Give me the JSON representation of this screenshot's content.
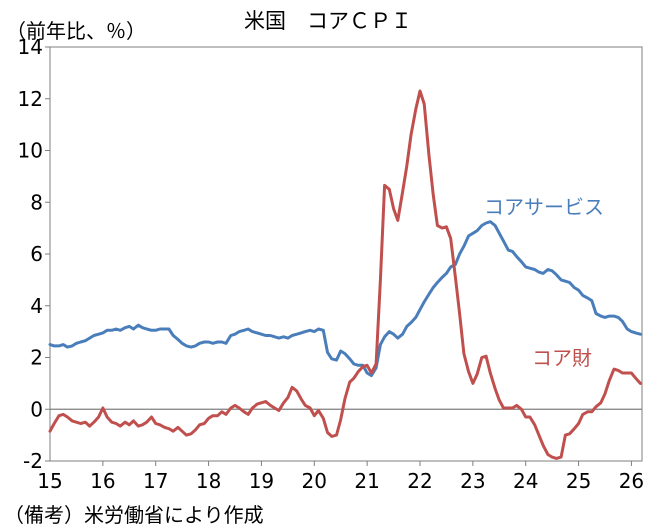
{
  "chart_data": {
    "type": "line",
    "title": "米国　コアＣＰＩ",
    "unit_label": "（前年比、％）",
    "note": "（備考）米労働省により作成",
    "ylim": [
      -2,
      14
    ],
    "y_ticks": [
      "-2",
      "0",
      "2",
      "4",
      "6",
      "8",
      "10",
      "12",
      "14"
    ],
    "x_ticks": [
      "15",
      "16",
      "17",
      "18",
      "19",
      "20",
      "21",
      "22",
      "23",
      "24",
      "25",
      "26"
    ],
    "x_range": [
      2015.0,
      2026.2
    ],
    "zero_line": true,
    "grid": false,
    "colors": {
      "services": "#4a7ebb",
      "goods": "#c0504d",
      "axis": "#7f7f7f"
    },
    "series": [
      {
        "name": "コアサービス",
        "color": "#4a7ebb",
        "points": [
          [
            2015.0,
            2.5
          ],
          [
            2015.08,
            2.45
          ],
          [
            2015.17,
            2.45
          ],
          [
            2015.25,
            2.5
          ],
          [
            2015.33,
            2.4
          ],
          [
            2015.42,
            2.45
          ],
          [
            2015.5,
            2.55
          ],
          [
            2015.58,
            2.6
          ],
          [
            2015.67,
            2.65
          ],
          [
            2015.75,
            2.75
          ],
          [
            2015.83,
            2.85
          ],
          [
            2015.92,
            2.9
          ],
          [
            2016.0,
            2.95
          ],
          [
            2016.08,
            3.05
          ],
          [
            2016.17,
            3.05
          ],
          [
            2016.25,
            3.1
          ],
          [
            2016.33,
            3.05
          ],
          [
            2016.42,
            3.15
          ],
          [
            2016.5,
            3.2
          ],
          [
            2016.58,
            3.1
          ],
          [
            2016.67,
            3.25
          ],
          [
            2016.75,
            3.15
          ],
          [
            2016.83,
            3.1
          ],
          [
            2016.92,
            3.05
          ],
          [
            2017.0,
            3.05
          ],
          [
            2017.08,
            3.1
          ],
          [
            2017.17,
            3.1
          ],
          [
            2017.25,
            3.1
          ],
          [
            2017.33,
            2.85
          ],
          [
            2017.42,
            2.7
          ],
          [
            2017.5,
            2.55
          ],
          [
            2017.58,
            2.45
          ],
          [
            2017.67,
            2.4
          ],
          [
            2017.75,
            2.45
          ],
          [
            2017.83,
            2.55
          ],
          [
            2017.92,
            2.6
          ],
          [
            2018.0,
            2.6
          ],
          [
            2018.08,
            2.55
          ],
          [
            2018.17,
            2.6
          ],
          [
            2018.25,
            2.6
          ],
          [
            2018.33,
            2.55
          ],
          [
            2018.42,
            2.85
          ],
          [
            2018.5,
            2.9
          ],
          [
            2018.58,
            3.0
          ],
          [
            2018.67,
            3.05
          ],
          [
            2018.75,
            3.1
          ],
          [
            2018.83,
            3.0
          ],
          [
            2018.92,
            2.95
          ],
          [
            2019.0,
            2.9
          ],
          [
            2019.08,
            2.85
          ],
          [
            2019.17,
            2.85
          ],
          [
            2019.25,
            2.8
          ],
          [
            2019.33,
            2.75
          ],
          [
            2019.42,
            2.8
          ],
          [
            2019.5,
            2.75
          ],
          [
            2019.58,
            2.85
          ],
          [
            2019.67,
            2.9
          ],
          [
            2019.75,
            2.95
          ],
          [
            2019.83,
            3.0
          ],
          [
            2019.92,
            3.05
          ],
          [
            2020.0,
            3.0
          ],
          [
            2020.08,
            3.1
          ],
          [
            2020.17,
            3.05
          ],
          [
            2020.25,
            2.2
          ],
          [
            2020.33,
            1.95
          ],
          [
            2020.42,
            1.9
          ],
          [
            2020.5,
            2.25
          ],
          [
            2020.58,
            2.15
          ],
          [
            2020.67,
            1.95
          ],
          [
            2020.75,
            1.75
          ],
          [
            2020.83,
            1.7
          ],
          [
            2020.92,
            1.7
          ],
          [
            2021.0,
            1.4
          ],
          [
            2021.08,
            1.3
          ],
          [
            2021.17,
            1.6
          ],
          [
            2021.25,
            2.5
          ],
          [
            2021.33,
            2.8
          ],
          [
            2021.42,
            3.0
          ],
          [
            2021.5,
            2.9
          ],
          [
            2021.58,
            2.75
          ],
          [
            2021.67,
            2.9
          ],
          [
            2021.75,
            3.2
          ],
          [
            2021.83,
            3.35
          ],
          [
            2021.92,
            3.55
          ],
          [
            2022.0,
            3.85
          ],
          [
            2022.08,
            4.15
          ],
          [
            2022.17,
            4.45
          ],
          [
            2022.25,
            4.7
          ],
          [
            2022.33,
            4.9
          ],
          [
            2022.42,
            5.1
          ],
          [
            2022.5,
            5.25
          ],
          [
            2022.58,
            5.5
          ],
          [
            2022.67,
            5.6
          ],
          [
            2022.75,
            6.0
          ],
          [
            2022.83,
            6.3
          ],
          [
            2022.92,
            6.7
          ],
          [
            2023.0,
            6.8
          ],
          [
            2023.08,
            6.9
          ],
          [
            2023.17,
            7.1
          ],
          [
            2023.25,
            7.2
          ],
          [
            2023.33,
            7.25
          ],
          [
            2023.42,
            7.1
          ],
          [
            2023.5,
            6.8
          ],
          [
            2023.58,
            6.5
          ],
          [
            2023.67,
            6.15
          ],
          [
            2023.75,
            6.1
          ],
          [
            2023.83,
            5.9
          ],
          [
            2023.92,
            5.7
          ],
          [
            2024.0,
            5.5
          ],
          [
            2024.08,
            5.45
          ],
          [
            2024.17,
            5.4
          ],
          [
            2024.25,
            5.3
          ],
          [
            2024.33,
            5.25
          ],
          [
            2024.42,
            5.4
          ],
          [
            2024.5,
            5.35
          ],
          [
            2024.58,
            5.2
          ],
          [
            2024.67,
            5.0
          ],
          [
            2024.75,
            4.95
          ],
          [
            2024.83,
            4.9
          ],
          [
            2024.92,
            4.7
          ],
          [
            2025.0,
            4.6
          ],
          [
            2025.08,
            4.4
          ],
          [
            2025.17,
            4.3
          ],
          [
            2025.25,
            4.2
          ],
          [
            2025.33,
            3.7
          ],
          [
            2025.42,
            3.6
          ],
          [
            2025.5,
            3.55
          ],
          [
            2025.58,
            3.6
          ],
          [
            2025.67,
            3.6
          ],
          [
            2025.75,
            3.55
          ],
          [
            2025.83,
            3.4
          ],
          [
            2025.92,
            3.1
          ],
          [
            2026.0,
            3.0
          ],
          [
            2026.08,
            2.95
          ],
          [
            2026.17,
            2.9
          ]
        ]
      },
      {
        "name": "コア財",
        "color": "#c0504d",
        "points": [
          [
            2015.0,
            -0.85
          ],
          [
            2015.08,
            -0.55
          ],
          [
            2015.17,
            -0.25
          ],
          [
            2015.25,
            -0.2
          ],
          [
            2015.33,
            -0.3
          ],
          [
            2015.42,
            -0.45
          ],
          [
            2015.5,
            -0.5
          ],
          [
            2015.58,
            -0.55
          ],
          [
            2015.67,
            -0.5
          ],
          [
            2015.75,
            -0.65
          ],
          [
            2015.83,
            -0.5
          ],
          [
            2015.92,
            -0.3
          ],
          [
            2016.0,
            0.05
          ],
          [
            2016.08,
            -0.3
          ],
          [
            2016.17,
            -0.5
          ],
          [
            2016.25,
            -0.55
          ],
          [
            2016.33,
            -0.65
          ],
          [
            2016.42,
            -0.5
          ],
          [
            2016.5,
            -0.6
          ],
          [
            2016.58,
            -0.45
          ],
          [
            2016.67,
            -0.65
          ],
          [
            2016.75,
            -0.6
          ],
          [
            2016.83,
            -0.5
          ],
          [
            2016.92,
            -0.3
          ],
          [
            2017.0,
            -0.55
          ],
          [
            2017.08,
            -0.6
          ],
          [
            2017.17,
            -0.7
          ],
          [
            2017.25,
            -0.75
          ],
          [
            2017.33,
            -0.85
          ],
          [
            2017.42,
            -0.7
          ],
          [
            2017.5,
            -0.85
          ],
          [
            2017.58,
            -1.0
          ],
          [
            2017.67,
            -0.95
          ],
          [
            2017.75,
            -0.8
          ],
          [
            2017.83,
            -0.6
          ],
          [
            2017.92,
            -0.55
          ],
          [
            2018.0,
            -0.35
          ],
          [
            2018.08,
            -0.25
          ],
          [
            2018.17,
            -0.25
          ],
          [
            2018.25,
            -0.1
          ],
          [
            2018.33,
            -0.2
          ],
          [
            2018.42,
            0.05
          ],
          [
            2018.5,
            0.15
          ],
          [
            2018.58,
            0.05
          ],
          [
            2018.67,
            -0.1
          ],
          [
            2018.75,
            -0.2
          ],
          [
            2018.83,
            0.05
          ],
          [
            2018.92,
            0.2
          ],
          [
            2019.0,
            0.25
          ],
          [
            2019.08,
            0.3
          ],
          [
            2019.17,
            0.15
          ],
          [
            2019.25,
            0.05
          ],
          [
            2019.33,
            -0.05
          ],
          [
            2019.42,
            0.25
          ],
          [
            2019.5,
            0.45
          ],
          [
            2019.58,
            0.85
          ],
          [
            2019.67,
            0.7
          ],
          [
            2019.75,
            0.4
          ],
          [
            2019.83,
            0.15
          ],
          [
            2019.92,
            0.05
          ],
          [
            2020.0,
            -0.25
          ],
          [
            2020.08,
            -0.05
          ],
          [
            2020.17,
            -0.35
          ],
          [
            2020.25,
            -0.9
          ],
          [
            2020.33,
            -1.05
          ],
          [
            2020.42,
            -1.0
          ],
          [
            2020.5,
            -0.4
          ],
          [
            2020.58,
            0.4
          ],
          [
            2020.67,
            1.05
          ],
          [
            2020.75,
            1.2
          ],
          [
            2020.83,
            1.45
          ],
          [
            2020.92,
            1.65
          ],
          [
            2021.0,
            1.7
          ],
          [
            2021.08,
            1.4
          ],
          [
            2021.17,
            1.75
          ],
          [
            2021.25,
            5.0
          ],
          [
            2021.33,
            8.65
          ],
          [
            2021.42,
            8.5
          ],
          [
            2021.5,
            7.75
          ],
          [
            2021.58,
            7.3
          ],
          [
            2021.67,
            8.4
          ],
          [
            2021.75,
            9.4
          ],
          [
            2021.83,
            10.6
          ],
          [
            2021.92,
            11.6
          ],
          [
            2022.0,
            12.3
          ],
          [
            2022.08,
            11.8
          ],
          [
            2022.17,
            9.8
          ],
          [
            2022.25,
            8.3
          ],
          [
            2022.33,
            7.1
          ],
          [
            2022.42,
            7.0
          ],
          [
            2022.5,
            7.05
          ],
          [
            2022.58,
            6.6
          ],
          [
            2022.67,
            5.1
          ],
          [
            2022.75,
            3.7
          ],
          [
            2022.83,
            2.15
          ],
          [
            2022.92,
            1.45
          ],
          [
            2023.0,
            1.0
          ],
          [
            2023.08,
            1.35
          ],
          [
            2023.17,
            2.0
          ],
          [
            2023.25,
            2.05
          ],
          [
            2023.33,
            1.4
          ],
          [
            2023.42,
            0.8
          ],
          [
            2023.5,
            0.35
          ],
          [
            2023.58,
            0.05
          ],
          [
            2023.67,
            0.05
          ],
          [
            2023.75,
            0.05
          ],
          [
            2023.83,
            0.15
          ],
          [
            2023.92,
            0.0
          ],
          [
            2024.0,
            -0.3
          ],
          [
            2024.08,
            -0.3
          ],
          [
            2024.17,
            -0.6
          ],
          [
            2024.25,
            -1.0
          ],
          [
            2024.33,
            -1.4
          ],
          [
            2024.42,
            -1.75
          ],
          [
            2024.5,
            -1.85
          ],
          [
            2024.58,
            -1.9
          ],
          [
            2024.67,
            -1.85
          ],
          [
            2024.75,
            -1.0
          ],
          [
            2024.83,
            -0.95
          ],
          [
            2024.92,
            -0.75
          ],
          [
            2025.0,
            -0.55
          ],
          [
            2025.08,
            -0.2
          ],
          [
            2025.17,
            -0.1
          ],
          [
            2025.25,
            -0.1
          ],
          [
            2025.33,
            0.1
          ],
          [
            2025.42,
            0.25
          ],
          [
            2025.5,
            0.6
          ],
          [
            2025.58,
            1.1
          ],
          [
            2025.67,
            1.55
          ],
          [
            2025.75,
            1.5
          ],
          [
            2025.83,
            1.4
          ],
          [
            2025.92,
            1.4
          ],
          [
            2026.0,
            1.4
          ],
          [
            2026.08,
            1.2
          ],
          [
            2026.17,
            1.0
          ]
        ]
      }
    ]
  }
}
